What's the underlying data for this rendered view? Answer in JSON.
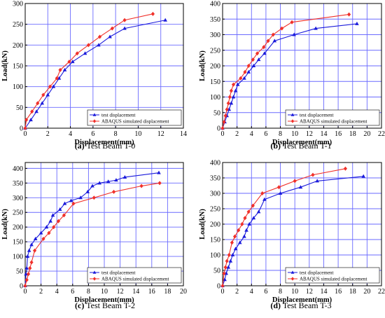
{
  "colors": {
    "test": "#1a1adb",
    "abaqus": "#f0302a",
    "grid": "#6a6aff",
    "axis": "#000000"
  },
  "chart_data": [
    {
      "type": "line",
      "caption_letter": "(a)",
      "caption_text": " Test Beam T-0",
      "xlabel": "Displacement(mm)",
      "ylabel": "Load(kN)",
      "xlim": [
        0,
        14
      ],
      "ylim": [
        0,
        300
      ],
      "xticks": [
        0,
        2,
        4,
        6,
        8,
        10,
        12,
        14
      ],
      "yticks": [
        0,
        50,
        100,
        150,
        200,
        250,
        300
      ],
      "grid": true,
      "legend_position": "bottom-right",
      "series": [
        {
          "name": "test displacement",
          "marker": "triangle",
          "x": [
            0,
            0.5,
            1.0,
            1.5,
            2.0,
            2.5,
            3.0,
            3.5,
            4.2,
            5.3,
            6.5,
            7.5,
            8.8,
            12.4
          ],
          "y": [
            0,
            20,
            40,
            60,
            80,
            100,
            120,
            140,
            160,
            180,
            200,
            220,
            240,
            260
          ]
        },
        {
          "name": "ABAQUS simulated displacement",
          "marker": "diamond",
          "x": [
            0,
            0.1,
            0.6,
            1.1,
            1.6,
            2.2,
            2.8,
            3.1,
            3.9,
            4.6,
            5.6,
            6.6,
            7.7,
            8.8,
            11.3
          ],
          "y": [
            0,
            20,
            40,
            60,
            80,
            100,
            120,
            140,
            160,
            180,
            200,
            220,
            240,
            260,
            275
          ]
        }
      ]
    },
    {
      "type": "line",
      "caption_letter": "(b)",
      "caption_text": " Test Beam T-1",
      "xlabel": "Displacement(mm)",
      "ylabel": "Load(kN)",
      "xlim": [
        0,
        22
      ],
      "ylim": [
        0,
        400
      ],
      "xticks": [
        0,
        2,
        4,
        6,
        8,
        10,
        12,
        14,
        16,
        18,
        20,
        22
      ],
      "yticks": [
        0,
        50,
        100,
        150,
        200,
        250,
        300,
        350,
        400
      ],
      "grid": true,
      "legend_position": "bottom-right",
      "series": [
        {
          "name": "test displacement",
          "marker": "triangle",
          "x": [
            0,
            0.3,
            0.6,
            0.9,
            1.2,
            1.5,
            1.8,
            2.1,
            3.0,
            3.6,
            4.3,
            5.0,
            5.8,
            7.2,
            9.9,
            12.9,
            18.6
          ],
          "y": [
            0,
            20,
            40,
            60,
            80,
            100,
            120,
            140,
            160,
            180,
            200,
            220,
            240,
            280,
            300,
            320,
            335
          ]
        },
        {
          "name": "ABAQUS simulated displacement",
          "marker": "diamond",
          "x": [
            0,
            0.2,
            0.4,
            0.6,
            0.8,
            1.0,
            1.2,
            1.5,
            2.5,
            3.1,
            3.6,
            4.2,
            4.8,
            5.7,
            6.3,
            7.0,
            8.2,
            9.6,
            17.5
          ],
          "y": [
            0,
            20,
            40,
            60,
            80,
            100,
            120,
            140,
            160,
            180,
            200,
            220,
            240,
            260,
            280,
            300,
            320,
            340,
            365
          ]
        }
      ]
    },
    {
      "type": "line",
      "caption_letter": "(c)",
      "caption_text": " Test Beam T-2",
      "xlabel": "Displacement(mm)",
      "ylabel": "Load(kN)",
      "xlim": [
        0,
        20
      ],
      "ylim": [
        0,
        420
      ],
      "xticks": [
        0,
        2,
        4,
        6,
        8,
        10,
        12,
        14,
        16,
        18,
        20
      ],
      "yticks": [
        0,
        50,
        100,
        150,
        200,
        250,
        300,
        350,
        400
      ],
      "grid": true,
      "legend_position": "bottom-right",
      "series": [
        {
          "name": "test displacement",
          "marker": "triangle",
          "x": [
            0,
            0.1,
            0.2,
            0.3,
            0.5,
            0.8,
            1.3,
            2.0,
            2.7,
            3.2,
            3.5,
            4.4,
            5.0,
            5.8,
            7.0,
            7.9,
            8.5,
            9.4,
            10.5,
            11.5,
            12.6,
            16.9
          ],
          "y": [
            0,
            40,
            60,
            100,
            120,
            140,
            160,
            180,
            200,
            220,
            240,
            260,
            280,
            290,
            300,
            320,
            340,
            350,
            355,
            360,
            370,
            385
          ]
        },
        {
          "name": "ABAQUS simulated displacement",
          "marker": "diamond",
          "x": [
            0,
            0.2,
            0.4,
            0.6,
            0.8,
            1.2,
            2.3,
            3.0,
            3.6,
            4.2,
            4.9,
            6.1,
            8.7,
            11.2,
            14.7,
            17.0
          ],
          "y": [
            0,
            20,
            40,
            60,
            80,
            120,
            160,
            180,
            200,
            220,
            240,
            280,
            300,
            320,
            340,
            350
          ]
        }
      ]
    },
    {
      "type": "line",
      "caption_letter": "(d)",
      "caption_text": " Test Beam T-3",
      "xlabel": "Displacement(mm)",
      "ylabel": "Load(kN)",
      "xlim": [
        0,
        22
      ],
      "ylim": [
        0,
        400
      ],
      "xticks": [
        0,
        2,
        4,
        6,
        8,
        10,
        12,
        14,
        16,
        18,
        20,
        22
      ],
      "yticks": [
        0,
        50,
        100,
        150,
        200,
        250,
        300,
        350,
        400
      ],
      "grid": true,
      "legend_position": "bottom-right",
      "series": [
        {
          "name": "test displacement",
          "marker": "triangle",
          "x": [
            0,
            0.3,
            0.5,
            0.8,
            1.1,
            1.4,
            1.8,
            2.4,
            3.0,
            3.3,
            3.7,
            4.3,
            5.0,
            5.8,
            8.0,
            10.8,
            13.1,
            19.5
          ],
          "y": [
            0,
            20,
            40,
            60,
            80,
            100,
            120,
            140,
            160,
            180,
            200,
            220,
            240,
            280,
            300,
            320,
            340,
            355
          ]
        },
        {
          "name": "ABAQUS simulated displacement",
          "marker": "diamond",
          "x": [
            0,
            0.2,
            0.4,
            0.6,
            0.9,
            1.3,
            1.7,
            2.2,
            2.7,
            3.1,
            3.6,
            4.2,
            5.5,
            7.8,
            10.0,
            12.5,
            17.0
          ],
          "y": [
            0,
            40,
            60,
            80,
            100,
            140,
            160,
            180,
            200,
            220,
            240,
            260,
            300,
            320,
            340,
            360,
            380
          ]
        }
      ]
    }
  ]
}
